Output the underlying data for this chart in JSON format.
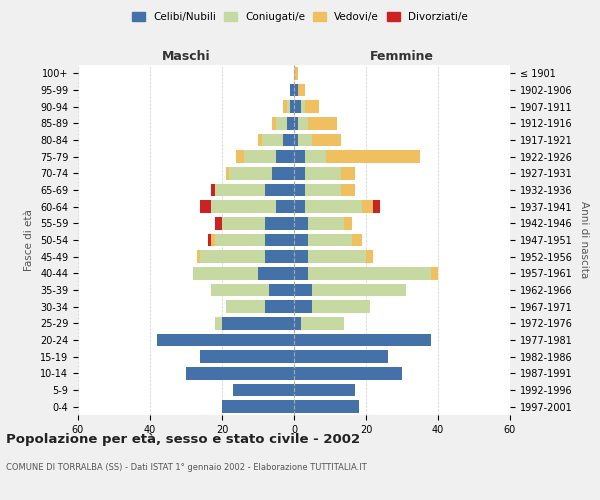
{
  "age_groups": [
    "0-4",
    "5-9",
    "10-14",
    "15-19",
    "20-24",
    "25-29",
    "30-34",
    "35-39",
    "40-44",
    "45-49",
    "50-54",
    "55-59",
    "60-64",
    "65-69",
    "70-74",
    "75-79",
    "80-84",
    "85-89",
    "90-94",
    "95-99",
    "100+"
  ],
  "birth_years": [
    "1997-2001",
    "1992-1996",
    "1987-1991",
    "1982-1986",
    "1977-1981",
    "1972-1976",
    "1967-1971",
    "1962-1966",
    "1957-1961",
    "1952-1956",
    "1947-1951",
    "1942-1946",
    "1937-1941",
    "1932-1936",
    "1927-1931",
    "1922-1926",
    "1917-1921",
    "1912-1916",
    "1907-1911",
    "1902-1906",
    "≤ 1901"
  ],
  "males": {
    "celibi": [
      20,
      17,
      30,
      26,
      38,
      20,
      8,
      7,
      10,
      8,
      8,
      8,
      5,
      8,
      6,
      5,
      3,
      2,
      1,
      1,
      0
    ],
    "coniugati": [
      0,
      0,
      0,
      0,
      0,
      2,
      11,
      16,
      18,
      18,
      14,
      12,
      18,
      14,
      12,
      9,
      6,
      3,
      1,
      0,
      0
    ],
    "vedovi": [
      0,
      0,
      0,
      0,
      0,
      0,
      0,
      0,
      0,
      1,
      1,
      0,
      0,
      0,
      1,
      2,
      1,
      1,
      1,
      0,
      0
    ],
    "divorziati": [
      0,
      0,
      0,
      0,
      0,
      0,
      0,
      0,
      0,
      0,
      1,
      2,
      3,
      1,
      0,
      0,
      0,
      0,
      0,
      0,
      0
    ]
  },
  "females": {
    "nubili": [
      18,
      17,
      30,
      26,
      38,
      2,
      5,
      5,
      4,
      4,
      4,
      4,
      3,
      3,
      3,
      3,
      1,
      1,
      2,
      1,
      0
    ],
    "coniugate": [
      0,
      0,
      0,
      0,
      0,
      12,
      16,
      26,
      34,
      16,
      12,
      10,
      16,
      10,
      10,
      6,
      4,
      3,
      1,
      0,
      0
    ],
    "vedove": [
      0,
      0,
      0,
      0,
      0,
      0,
      0,
      0,
      2,
      2,
      3,
      2,
      3,
      4,
      4,
      26,
      8,
      8,
      4,
      2,
      1
    ],
    "divorziate": [
      0,
      0,
      0,
      0,
      0,
      0,
      0,
      0,
      0,
      0,
      0,
      0,
      2,
      0,
      0,
      0,
      0,
      0,
      0,
      0,
      0
    ]
  },
  "colors": {
    "celibi": "#4472a8",
    "coniugati": "#c5d9a0",
    "vedovi": "#f0c060",
    "divorziati": "#cc2222"
  },
  "xlim": 60,
  "title": "Popolazione per età, sesso e stato civile - 2002",
  "subtitle": "COMUNE DI TORRALBA (SS) - Dati ISTAT 1° gennaio 2002 - Elaborazione TUTTITALIA.IT",
  "xlabel_left": "Maschi",
  "xlabel_right": "Femmine",
  "ylabel": "Fasce di età",
  "ylabel_right": "Anni di nascita",
  "legend_labels": [
    "Celibi/Nubili",
    "Coniugati/e",
    "Vedovi/e",
    "Divorziati/e"
  ],
  "bg_color": "#f0f0f0",
  "plot_bg_color": "#ffffff",
  "grid_color": "#cccccc"
}
